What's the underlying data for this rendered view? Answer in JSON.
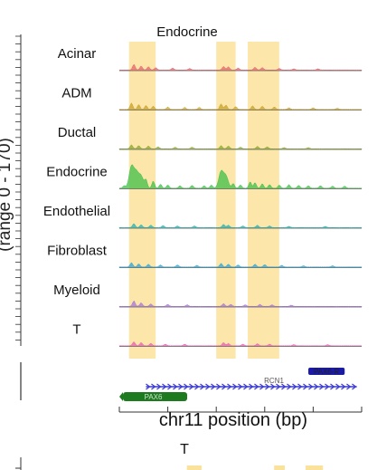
{
  "chart_data": {
    "type": "area",
    "title": "Endocrine",
    "ylabel": "(range 0 - 170)",
    "xlabel": "chr11 position (bp)",
    "ylim": [
      0,
      170
    ],
    "x_domain": [
      0,
      100
    ],
    "highlight_color": "#fbe29a",
    "highlights": [
      {
        "start": 4,
        "end": 15
      },
      {
        "start": 40,
        "end": 48
      },
      {
        "start": 53,
        "end": 66
      }
    ],
    "series": [
      {
        "name": "Acinar",
        "color": "#e8636b",
        "peaks": [
          [
            6,
            14
          ],
          [
            9,
            10
          ],
          [
            12,
            8
          ],
          [
            15,
            6
          ],
          [
            22,
            5
          ],
          [
            29,
            4
          ],
          [
            43,
            9
          ],
          [
            45,
            8
          ],
          [
            49,
            5
          ],
          [
            56,
            7
          ],
          [
            59,
            6
          ],
          [
            66,
            4
          ],
          [
            72,
            3
          ],
          [
            82,
            3
          ]
        ]
      },
      {
        "name": "ADM",
        "color": "#c9a227",
        "peaks": [
          [
            5,
            16
          ],
          [
            8,
            12
          ],
          [
            11,
            10
          ],
          [
            14,
            8
          ],
          [
            20,
            6
          ],
          [
            27,
            5
          ],
          [
            33,
            5
          ],
          [
            42,
            14
          ],
          [
            44,
            11
          ],
          [
            48,
            7
          ],
          [
            55,
            9
          ],
          [
            59,
            8
          ],
          [
            64,
            6
          ],
          [
            70,
            4
          ],
          [
            80,
            4
          ],
          [
            90,
            3
          ]
        ]
      },
      {
        "name": "Ductal",
        "color": "#8aa82b",
        "peaks": [
          [
            5,
            10
          ],
          [
            8,
            8
          ],
          [
            12,
            7
          ],
          [
            16,
            5
          ],
          [
            23,
            4
          ],
          [
            30,
            4
          ],
          [
            42,
            8
          ],
          [
            45,
            7
          ],
          [
            50,
            4
          ],
          [
            57,
            6
          ],
          [
            61,
            5
          ],
          [
            68,
            3
          ],
          [
            78,
            3
          ]
        ]
      },
      {
        "name": "Endocrine",
        "color": "#3fbf4a",
        "peaks": [
          [
            2,
            6
          ],
          [
            5,
            55
          ],
          [
            7,
            38
          ],
          [
            9,
            30
          ],
          [
            11,
            20
          ],
          [
            14,
            18
          ],
          [
            17,
            10
          ],
          [
            20,
            8
          ],
          [
            25,
            6
          ],
          [
            30,
            7
          ],
          [
            35,
            6
          ],
          [
            38,
            8
          ],
          [
            42,
            42
          ],
          [
            44,
            30
          ],
          [
            47,
            12
          ],
          [
            50,
            8
          ],
          [
            54,
            16
          ],
          [
            56,
            14
          ],
          [
            59,
            11
          ],
          [
            62,
            9
          ],
          [
            66,
            8
          ],
          [
            70,
            9
          ],
          [
            74,
            7
          ],
          [
            78,
            6
          ],
          [
            83,
            6
          ],
          [
            88,
            5
          ],
          [
            93,
            5
          ]
        ]
      },
      {
        "name": "Endothelial",
        "color": "#21b3b0",
        "peaks": [
          [
            6,
            10
          ],
          [
            9,
            7
          ],
          [
            13,
            6
          ],
          [
            18,
            5
          ],
          [
            24,
            4
          ],
          [
            31,
            4
          ],
          [
            43,
            8
          ],
          [
            45,
            6
          ],
          [
            51,
            4
          ],
          [
            57,
            6
          ],
          [
            62,
            4
          ],
          [
            70,
            3
          ],
          [
            85,
            3
          ]
        ]
      },
      {
        "name": "Fibroblast",
        "color": "#27a6d8",
        "peaks": [
          [
            5,
            11
          ],
          [
            8,
            8
          ],
          [
            12,
            7
          ],
          [
            17,
            5
          ],
          [
            24,
            5
          ],
          [
            32,
            4
          ],
          [
            42,
            9
          ],
          [
            45,
            7
          ],
          [
            49,
            5
          ],
          [
            56,
            7
          ],
          [
            60,
            6
          ],
          [
            67,
            4
          ],
          [
            76,
            3
          ],
          [
            88,
            3
          ]
        ]
      },
      {
        "name": "Myeloid",
        "color": "#a874d8",
        "peaks": [
          [
            6,
            14
          ],
          [
            9,
            9
          ],
          [
            13,
            6
          ],
          [
            20,
            5
          ],
          [
            28,
            4
          ],
          [
            43,
            7
          ],
          [
            46,
            5
          ],
          [
            52,
            4
          ],
          [
            58,
            5
          ],
          [
            63,
            4
          ],
          [
            71,
            3
          ]
        ]
      },
      {
        "name": "T",
        "color": "#e65fb5",
        "peaks": [
          [
            6,
            10
          ],
          [
            9,
            8
          ],
          [
            13,
            6
          ],
          [
            19,
            4
          ],
          [
            27,
            4
          ],
          [
            43,
            8
          ],
          [
            45,
            6
          ],
          [
            51,
            4
          ],
          [
            57,
            5
          ],
          [
            62,
            4
          ],
          [
            72,
            3
          ],
          [
            86,
            3
          ]
        ]
      }
    ],
    "genes": [
      {
        "name": "PAX6",
        "start": 0,
        "end": 28,
        "strand": "-",
        "color": "#1e7a1e"
      },
      {
        "name": "RCN1",
        "start": 11,
        "end": 98,
        "strand": "+",
        "color": "#3a3ad0"
      },
      {
        "name": "PAX6-R",
        "start": 78,
        "end": 93,
        "strand": "+",
        "color": "#1a1aa6"
      }
    ],
    "next_panel": {
      "title": "T",
      "highlight_color": "#fbe29a",
      "highlights": [
        {
          "start": 4,
          "end": 15
        },
        {
          "start": 40,
          "end": 48
        },
        {
          "start": 53,
          "end": 66
        }
      ]
    }
  }
}
